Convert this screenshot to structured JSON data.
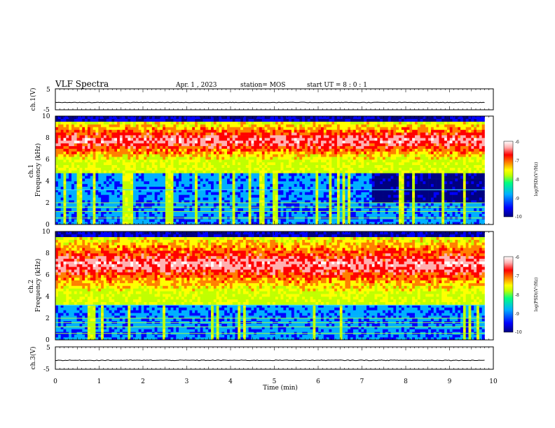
{
  "header": {
    "title": "VLF Spectra",
    "date": "Apr. 1 , 2023",
    "station": "station= MOS",
    "start": "start UT =  8 : 0 : 1"
  },
  "chart_data": [
    {
      "type": "line",
      "panel": "ch1-voltage",
      "ylabel": "ch.1(V)",
      "ylim": [
        -5,
        5
      ],
      "yticks": [
        "5",
        "-5"
      ],
      "series": [
        {
          "x": [
            0,
            9.8
          ],
          "y": [
            -1.5,
            -1.5
          ]
        }
      ]
    },
    {
      "type": "heatmap",
      "panel": "ch1-spectrogram",
      "ylabel": "ch.1\nFrequency (kHz)",
      "xlim": [
        0,
        10
      ],
      "ylim": [
        0,
        10
      ],
      "yticks": [
        "0",
        "2",
        "4",
        "6",
        "8",
        "10"
      ],
      "data_x_end_min": 9.8,
      "colorbar": {
        "label": "log(PSD)(V²/Hz)",
        "range": [
          -10,
          -6
        ],
        "ticks": [
          "-6",
          "-7",
          "-8",
          "-9",
          "-10"
        ],
        "colors": [
          "#000080",
          "#0000ff",
          "#00b0ff",
          "#00ff80",
          "#c0ff00",
          "#ffff00",
          "#ff8000",
          "#ff0000",
          "#ffb0b0",
          "#ffffff"
        ]
      },
      "strong_band_khz": [
        6.0,
        9.5
      ],
      "quiet_region": {
        "x_min": [
          7.2,
          9.8
        ],
        "f_khz": [
          2.0,
          5.2
        ]
      }
    },
    {
      "type": "heatmap",
      "panel": "ch2-spectrogram",
      "ylabel": "ch.2\nFrequency (kHz)",
      "xlim": [
        0,
        10
      ],
      "ylim": [
        0,
        10
      ],
      "yticks": [
        "0",
        "2",
        "4",
        "6",
        "8",
        "10"
      ],
      "data_x_end_min": 9.8,
      "colorbar": {
        "label": "log(PSD)(V²/Hz)",
        "range": [
          -10,
          -6
        ],
        "ticks": [
          "-6",
          "-7",
          "-8",
          "-9",
          "-10"
        ]
      },
      "strong_band_khz": [
        4.5,
        9.5
      ]
    },
    {
      "type": "line",
      "panel": "ch3-voltage",
      "ylabel": "ch.3(V)",
      "ylim": [
        -5,
        5
      ],
      "yticks": [
        "5",
        "-5"
      ],
      "series": [
        {
          "x": [
            0,
            9.8
          ],
          "y": [
            -1.0,
            -1.0
          ]
        }
      ]
    }
  ],
  "xaxis": {
    "label": "Time  (min)",
    "ticks": [
      "0",
      "1",
      "2",
      "3",
      "4",
      "5",
      "6",
      "7",
      "8",
      "9",
      "10"
    ]
  }
}
